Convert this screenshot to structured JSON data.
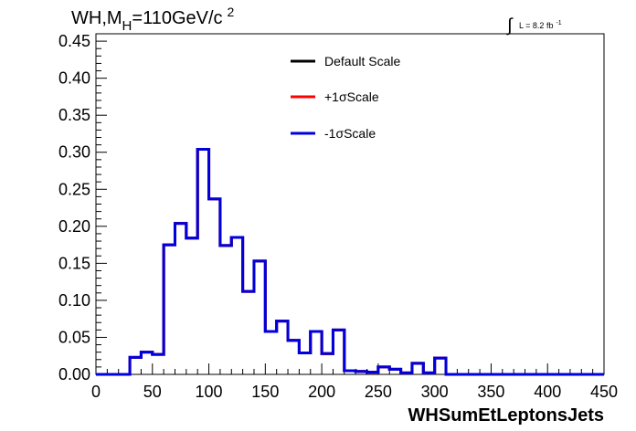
{
  "chart_data": {
    "type": "line",
    "title": "WH,M",
    "title_sub": "H",
    "title_tail": "=110GeV/c",
    "title_sup": "2",
    "lumi_label": "L = 8.2 fb",
    "lumi_sup": "-1",
    "xlabel": "WHSumEtLeptonsJets",
    "ylabel": "",
    "xlim": [
      0,
      450
    ],
    "ylim": [
      0,
      0.46
    ],
    "grid": false,
    "legend_position": "top-right",
    "x_ticks": [
      "0",
      "50",
      "100",
      "150",
      "200",
      "250",
      "300",
      "350",
      "400",
      "450"
    ],
    "y_ticks": [
      "0.00",
      "0.05",
      "0.10",
      "0.15",
      "0.20",
      "0.25",
      "0.30",
      "0.35",
      "0.40",
      "0.45"
    ],
    "bin_edges": [
      0,
      10,
      20,
      30,
      40,
      50,
      60,
      70,
      80,
      90,
      100,
      110,
      120,
      130,
      140,
      150,
      160,
      170,
      180,
      190,
      200,
      210,
      220,
      230,
      240,
      250,
      260,
      270,
      280,
      290,
      300,
      310,
      320,
      330,
      340,
      350,
      360,
      370,
      380,
      390,
      400,
      410,
      420,
      430,
      440,
      450
    ],
    "series": [
      {
        "name": "Default Scale",
        "color": "#000000",
        "values": [
          0,
          0,
          0,
          0.023,
          0.03,
          0.027,
          0.175,
          0.204,
          0.184,
          0.304,
          0.237,
          0.174,
          0.185,
          0.112,
          0.153,
          0.058,
          0.072,
          0.046,
          0.029,
          0.058,
          0.028,
          0.06,
          0.005,
          0.004,
          0.003,
          0.01,
          0.007,
          0.002,
          0.015,
          0.002,
          0.022,
          0,
          0,
          0,
          0,
          0,
          0,
          0,
          0,
          0,
          0,
          0,
          0,
          0,
          0
        ]
      },
      {
        "name": "+1σScale",
        "color": "#ff0000",
        "values": [
          0,
          0,
          0,
          0.023,
          0.03,
          0.027,
          0.175,
          0.204,
          0.184,
          0.304,
          0.237,
          0.174,
          0.185,
          0.112,
          0.153,
          0.058,
          0.072,
          0.046,
          0.029,
          0.058,
          0.028,
          0.06,
          0.005,
          0.004,
          0.003,
          0.01,
          0.007,
          0.002,
          0.015,
          0.002,
          0.022,
          0,
          0,
          0,
          0,
          0,
          0,
          0,
          0,
          0,
          0,
          0,
          0,
          0,
          0
        ]
      },
      {
        "name": "-1σScale",
        "color": "#0000dd",
        "values": [
          0,
          0,
          0,
          0.023,
          0.03,
          0.027,
          0.175,
          0.204,
          0.184,
          0.304,
          0.237,
          0.174,
          0.185,
          0.112,
          0.153,
          0.058,
          0.072,
          0.046,
          0.029,
          0.058,
          0.028,
          0.06,
          0.005,
          0.004,
          0.003,
          0.01,
          0.007,
          0.002,
          0.015,
          0.002,
          0.022,
          0,
          0,
          0,
          0,
          0,
          0,
          0,
          0,
          0,
          0,
          0,
          0,
          0,
          0
        ]
      }
    ]
  }
}
